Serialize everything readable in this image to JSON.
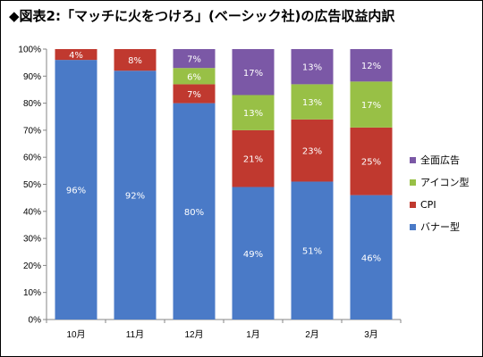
{
  "title": "◆図表2:「マッチに火をつけろ」(ベーシック社)の広告収益内訳",
  "colors": {
    "banner": "#4a7ac7",
    "cpi": "#c0392f",
    "icon": "#98c046",
    "full": "#7b58a6"
  },
  "chart_data": {
    "type": "bar",
    "stacked": true,
    "percent": true,
    "categories": [
      "10月",
      "11月",
      "12月",
      "1月",
      "2月",
      "3月"
    ],
    "series": [
      {
        "name": "バナー型",
        "values": [
          96,
          92,
          80,
          49,
          51,
          46
        ],
        "labels": [
          "96%",
          "92%",
          "80%",
          "49%",
          "51%",
          "46%"
        ]
      },
      {
        "name": "CPI",
        "values": [
          4,
          8,
          7,
          21,
          23,
          25
        ],
        "labels": [
          "4%",
          "8%",
          "7%",
          "21%",
          "23%",
          "25%"
        ]
      },
      {
        "name": "アイコン型",
        "values": [
          0,
          0,
          6,
          13,
          13,
          17
        ],
        "labels": [
          "",
          "",
          "6%",
          "13%",
          "13%",
          "17%"
        ]
      },
      {
        "name": "全面広告",
        "values": [
          0,
          0,
          7,
          17,
          13,
          12
        ],
        "labels": [
          "",
          "",
          "7%",
          "17%",
          "13%",
          "12%"
        ]
      }
    ],
    "yticks": [
      "0%",
      "10%",
      "20%",
      "30%",
      "40%",
      "50%",
      "60%",
      "70%",
      "80%",
      "90%",
      "100%"
    ],
    "ylim": [
      0,
      100
    ],
    "legend_position": "right",
    "legend_order": [
      "全面広告",
      "アイコン型",
      "CPI",
      "バナー型"
    ],
    "grid": false
  }
}
